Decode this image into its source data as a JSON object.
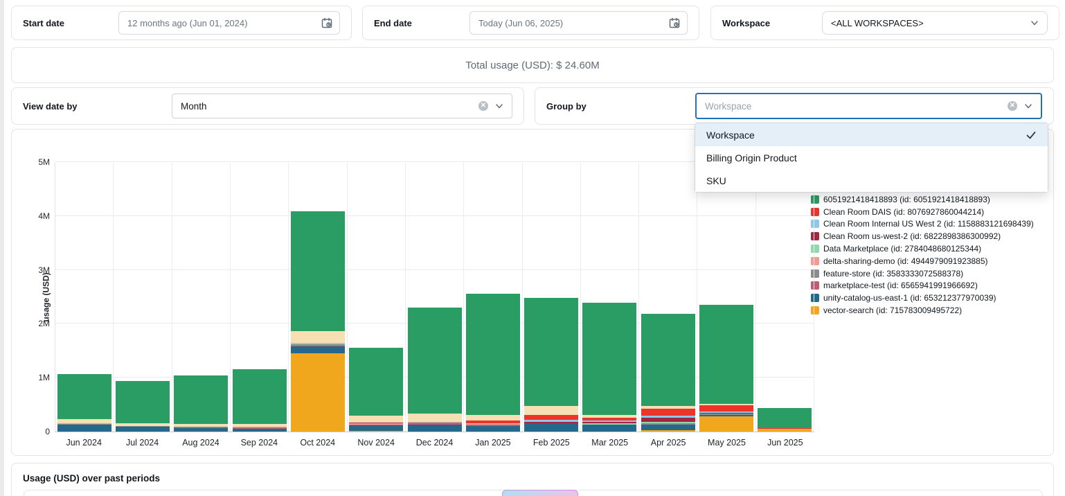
{
  "filters": {
    "start_date": {
      "label": "Start date",
      "value": "12 months ago (Jun 01, 2024)"
    },
    "end_date": {
      "label": "End date",
      "value": "Today (Jun 06, 2025)"
    },
    "workspace": {
      "label": "Workspace",
      "value": "<ALL WORKSPACES>"
    }
  },
  "summary": {
    "total_usage": "Total usage (USD): $ 24.60M"
  },
  "controls": {
    "view_date_by": {
      "label": "View date by",
      "value": "Month"
    },
    "group_by": {
      "label": "Group by",
      "placeholder": "Workspace"
    }
  },
  "group_by_menu": {
    "options": [
      {
        "label": "Workspace",
        "selected": true
      },
      {
        "label": "Billing Origin Product",
        "selected": false
      },
      {
        "label": "SKU",
        "selected": false
      }
    ]
  },
  "colors": {
    "accent_blue": "#2272b4",
    "selected_row_bg": "#e4eff8"
  },
  "chart_data": {
    "type": "bar",
    "stacked": true,
    "title": "",
    "ylabel": "usage (USD)",
    "xlabel": "",
    "ylim_m": [
      0,
      5
    ],
    "yticks": [
      "0",
      "1M",
      "2M",
      "3M",
      "4M",
      "5M"
    ],
    "grid": true,
    "legend_position": "right",
    "categories": [
      "Jun 2024",
      "Jul 2024",
      "Aug 2024",
      "Sep 2024",
      "Oct 2024",
      "Nov 2024",
      "Dec 2024",
      "Jan 2025",
      "Feb 2025",
      "Mar 2025",
      "Apr 2025",
      "May 2025",
      "Jun 2025"
    ],
    "units": "millions USD",
    "series": [
      {
        "name": "vector-search (id: 715783009495722)",
        "color": "#f0a71d",
        "in_legend": true,
        "values": [
          0,
          0,
          0,
          0,
          1.45,
          0.015,
          0,
          0,
          0,
          0,
          0.03,
          0.28,
          0.04
        ]
      },
      {
        "name": "unity-catalog-us-east-1 (id: 653212377970039)",
        "color": "#26688a",
        "in_legend": true,
        "values": [
          0.13,
          0.09,
          0.065,
          0.055,
          0.13,
          0.1,
          0.135,
          0.1,
          0.155,
          0.13,
          0.1,
          0.025,
          0
        ]
      },
      {
        "name": "marketplace-test (id: 6565941991966692)",
        "color": "#bd5c72",
        "in_legend": true,
        "values": [
          0,
          0,
          0.01,
          0.015,
          0.02,
          0.015,
          0.02,
          0.025,
          0,
          0,
          0,
          0.01,
          0
        ]
      },
      {
        "name": "feature-store (id: 3583333072588378)",
        "color": "#8b8b8b",
        "in_legend": true,
        "values": [
          0.015,
          0.01,
          0.01,
          0.01,
          0.02,
          0,
          0.01,
          0,
          0,
          0,
          0.02,
          0.015,
          0
        ]
      },
      {
        "name": "delta-sharing-demo (id: 4944979091923885)",
        "color": "#f29a94",
        "in_legend": true,
        "values": [
          0.01,
          0.005,
          0.01,
          0.01,
          0,
          0.02,
          0.02,
          0.015,
          0,
          0,
          0,
          0,
          0.012
        ]
      },
      {
        "name": "Data Marketplace (id: 2784048680125344)",
        "color": "#8fd9ac",
        "in_legend": true,
        "values": [
          0,
          0,
          0,
          0,
          0.02,
          0,
          0,
          0.01,
          0,
          0.02,
          0.03,
          0,
          0
        ]
      },
      {
        "name": "Clean Room us-west-2 (id: 6822898386300992)",
        "color": "#a32641",
        "in_legend": true,
        "values": [
          0,
          0,
          0,
          0,
          0,
          0.02,
          0,
          0,
          0.02,
          0.025,
          0.08,
          0.02,
          0
        ]
      },
      {
        "name": "Clean Room Internal US West 2 (id: 1158883121698439)",
        "color": "#8ec7e8",
        "in_legend": true,
        "values": [
          0,
          0,
          0,
          0,
          0,
          0,
          0,
          0,
          0.05,
          0.03,
          0.04,
          0.02,
          0
        ]
      },
      {
        "name": "Clean Room DAIS (id: 8076927860044214)",
        "color": "#ed342b",
        "in_legend": true,
        "values": [
          0,
          0,
          0,
          0,
          0,
          0,
          0,
          0.055,
          0.09,
          0.055,
          0.12,
          0.125,
          0.013
        ]
      },
      {
        "name": "unlabeled tan segment",
        "color": "#f7dfb4",
        "in_legend": false,
        "values": [
          0.075,
          0.055,
          0.05,
          0.05,
          0.22,
          0.13,
          0.155,
          0.1,
          0.165,
          0.05,
          0.06,
          0.02,
          0
        ]
      },
      {
        "name": "6051921418418893 (id: 6051921418418893)",
        "color": "#2a9d64",
        "in_legend": true,
        "values": [
          0.84,
          0.78,
          0.895,
          1.02,
          2.23,
          1.26,
          1.96,
          2.25,
          2.0,
          2.08,
          1.7,
          1.84,
          0.375
        ]
      }
    ]
  },
  "bottom": {
    "title": "Usage (USD) over past periods"
  }
}
